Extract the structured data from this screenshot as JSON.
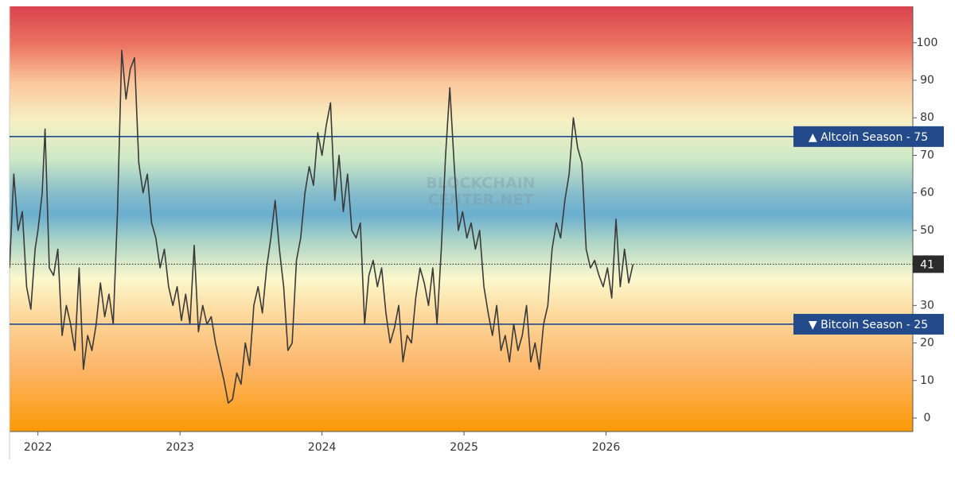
{
  "chart_data": {
    "type": "line",
    "watermark": [
      "BLOCKCHAIN",
      "CENTER.NET"
    ],
    "x": [
      2021.8,
      2021.83,
      2021.86,
      2021.89,
      2021.92,
      2021.95,
      2021.98,
      2022.0,
      2022.03,
      2022.05,
      2022.08,
      2022.11,
      2022.14,
      2022.17,
      2022.2,
      2022.23,
      2022.26,
      2022.29,
      2022.32,
      2022.35,
      2022.38,
      2022.41,
      2022.44,
      2022.47,
      2022.5,
      2022.53,
      2022.56,
      2022.59,
      2022.62,
      2022.65,
      2022.68,
      2022.71,
      2022.74,
      2022.77,
      2022.8,
      2022.83,
      2022.86,
      2022.89,
      2022.92,
      2022.95,
      2022.98,
      2023.01,
      2023.04,
      2023.07,
      2023.1,
      2023.13,
      2023.16,
      2023.19,
      2023.22,
      2023.25,
      2023.28,
      2023.31,
      2023.34,
      2023.37,
      2023.4,
      2023.43,
      2023.46,
      2023.49,
      2023.52,
      2023.55,
      2023.58,
      2023.61,
      2023.64,
      2023.67,
      2023.7,
      2023.73,
      2023.76,
      2023.79,
      2023.82,
      2023.85,
      2023.88,
      2023.91,
      2023.94,
      2023.97,
      2024.0,
      2024.03,
      2024.06,
      2024.09,
      2024.12,
      2024.15,
      2024.18,
      2024.21,
      2024.24,
      2024.27,
      2024.3,
      2024.33,
      2024.36,
      2024.39,
      2024.42,
      2024.45,
      2024.48,
      2024.51,
      2024.54,
      2024.57,
      2024.6,
      2024.63,
      2024.66,
      2024.69,
      2024.72,
      2024.75,
      2024.78,
      2024.81,
      2024.84,
      2024.87,
      2024.9,
      2024.93,
      2024.96,
      2024.99,
      2025.02,
      2025.05,
      2025.08,
      2025.11,
      2025.14,
      2025.17,
      2025.2,
      2025.23,
      2025.26,
      2025.29,
      2025.32,
      2025.35,
      2025.38,
      2025.41,
      2025.44,
      2025.47,
      2025.5,
      2025.53,
      2025.56,
      2025.59,
      2025.62,
      2025.65,
      2025.68,
      2025.71,
      2025.74,
      2025.77,
      2025.8,
      2025.83,
      2025.86,
      2025.89,
      2025.92,
      2025.95,
      2025.98,
      2026.01,
      2026.04,
      2026.07,
      2026.1,
      2026.13,
      2026.16,
      2026.19
    ],
    "series": [
      {
        "color": "#3a3a3a",
        "values": [
          40,
          65,
          50,
          55,
          35,
          29,
          45,
          50,
          60,
          77,
          40,
          38,
          45,
          22,
          30,
          25,
          18,
          40,
          13,
          22,
          18,
          25,
          36,
          27,
          33,
          25,
          55,
          98,
          85,
          93,
          96,
          68,
          60,
          65,
          52,
          48,
          40,
          45,
          35,
          30,
          35,
          26,
          33,
          25,
          46,
          23,
          30,
          25,
          27,
          20,
          15,
          10,
          4,
          5,
          12,
          9,
          20,
          14,
          30,
          35,
          28,
          40,
          48,
          58,
          45,
          35,
          18,
          20,
          42,
          48,
          60,
          67,
          62,
          76,
          70,
          78,
          84,
          58,
          70,
          55,
          65,
          50,
          48,
          52,
          25,
          38,
          42,
          35,
          40,
          28,
          20,
          24,
          30,
          15,
          22,
          20,
          32,
          40,
          36,
          30,
          40,
          25,
          45,
          70,
          88,
          68,
          50,
          55,
          48,
          52,
          45,
          50,
          35,
          28,
          22,
          30,
          18,
          22,
          15,
          25,
          18,
          22,
          30,
          15,
          20,
          13,
          25,
          30,
          45,
          52,
          48,
          58,
          65,
          80,
          72,
          68,
          45,
          40,
          42,
          38,
          35,
          40,
          32,
          53,
          35,
          45,
          36,
          41
        ]
      }
    ],
    "xlim": [
      2021.8,
      2028.16
    ],
    "xticks": [
      2022,
      2023,
      2024,
      2025,
      2026
    ],
    "ylim": [
      -3.6,
      109.7
    ],
    "yticks": [
      0,
      10,
      20,
      30,
      40,
      50,
      60,
      70,
      80,
      90,
      100
    ],
    "reference_lines": [
      {
        "value": 75,
        "label": "▲ Altcoin Season - 75",
        "color": "#234a8a"
      },
      {
        "value": 25,
        "label": "▼ Bitcoin Season - 25",
        "color": "#234a8a"
      }
    ]
  }
}
